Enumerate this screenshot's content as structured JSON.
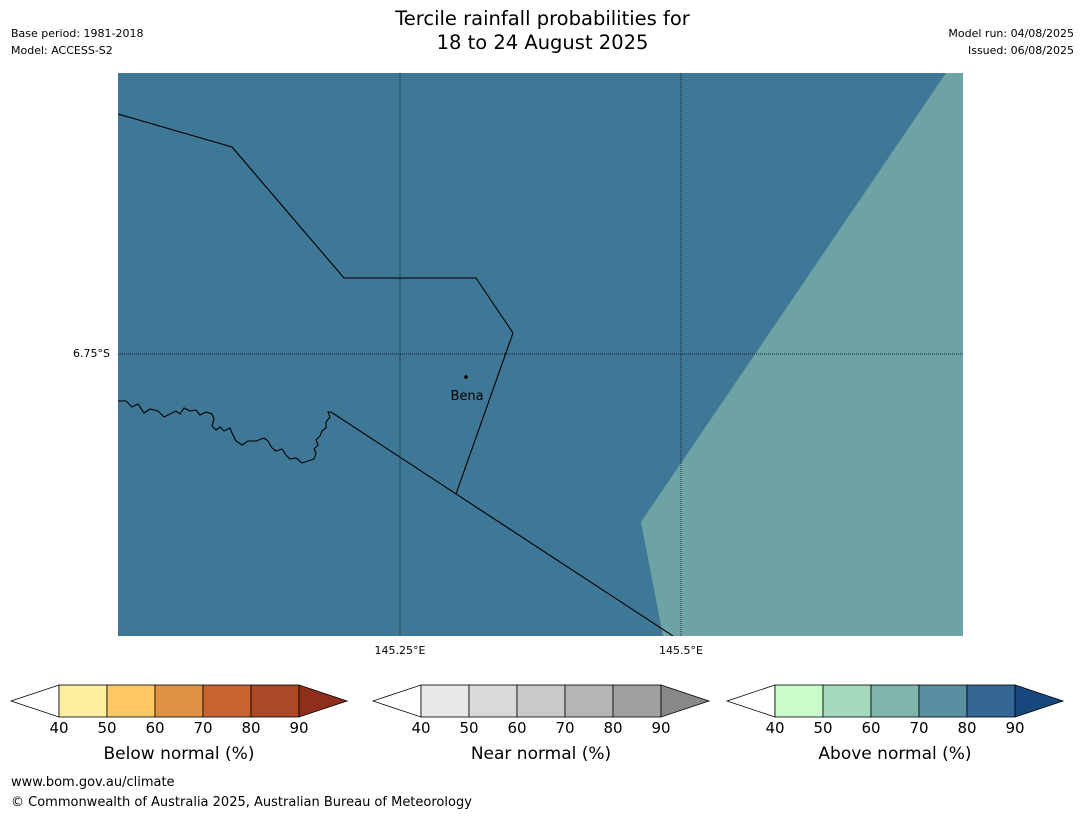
{
  "header": {
    "title_line1": "Tercile rainfall probabilities for",
    "title_line2": "18 to 24 August 2025",
    "base_period": "Base period: 1981-2018",
    "model": "Model: ACCESS-S2",
    "model_run": "Model run: 04/08/2025",
    "issued": "Issued: 06/08/2025"
  },
  "map": {
    "lat_label": "6.75°S",
    "lon_labels": [
      "145.25°E",
      "145.5°E"
    ],
    "place_name": "Bena",
    "region_colors": {
      "above_80_90": "#3f7896",
      "above_60_70": "#6ea3a6"
    }
  },
  "colorbars": [
    {
      "name": "below-normal",
      "title": "Below normal (%)",
      "ticks": [
        "40",
        "50",
        "60",
        "70",
        "80",
        "90"
      ],
      "colors": [
        "#ffffff",
        "#ffeda0",
        "#fec964",
        "#e09244",
        "#ca6332",
        "#ac4826",
        "#8d2f1c"
      ]
    },
    {
      "name": "near-normal",
      "title": "Near normal (%)",
      "ticks": [
        "40",
        "50",
        "60",
        "70",
        "80",
        "90"
      ],
      "colors": [
        "#ffffff",
        "#e8e8e8",
        "#d9d9d9",
        "#c9c9c9",
        "#b5b5b5",
        "#a0a0a0",
        "#888888"
      ]
    },
    {
      "name": "above-normal",
      "title": "Above normal (%)",
      "ticks": [
        "40",
        "50",
        "60",
        "70",
        "80",
        "90"
      ],
      "colors": [
        "#ffffff",
        "#c8fcc9",
        "#a6d8bd",
        "#80b5ad",
        "#5a8fa2",
        "#346794",
        "#16477d"
      ]
    }
  ],
  "footer": {
    "url": "www.bom.gov.au/climate",
    "copyright": "© Commonwealth of Australia 2025, Australian Bureau of Meteorology"
  }
}
